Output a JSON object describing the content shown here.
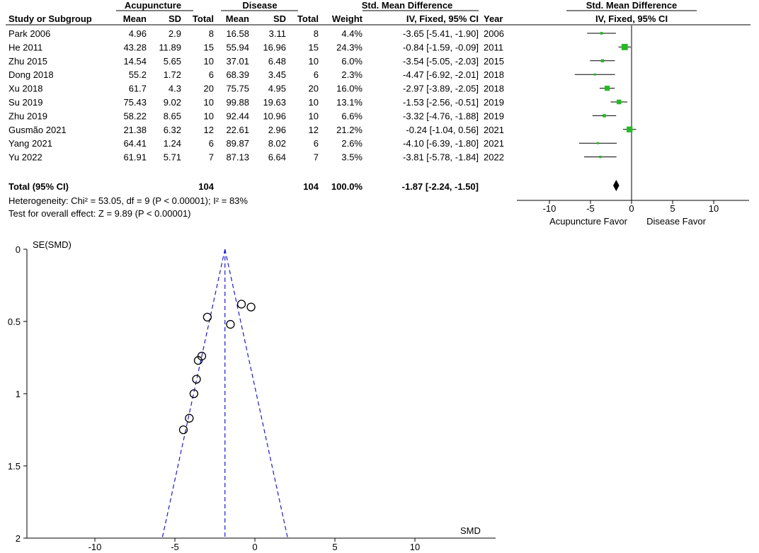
{
  "forest": {
    "group_headers": {
      "left": "Acupuncture",
      "right": "Disease",
      "smd": "Std. Mean Difference",
      "plot": "Std. Mean Difference"
    },
    "columns": {
      "study": "Study or Subgroup",
      "mean1": "Mean",
      "sd1": "SD",
      "total1": "Total",
      "mean2": "Mean",
      "sd2": "SD",
      "total2": "Total",
      "weight": "Weight",
      "ci": "IV, Fixed, 95% CI",
      "year": "Year",
      "plot_ci": "IV, Fixed, 95% CI"
    },
    "rows": [
      {
        "study": "Park 2006",
        "mean1": "4.96",
        "sd1": "2.9",
        "total1": "8",
        "mean2": "16.58",
        "sd2": "3.11",
        "total2": "8",
        "weight": "4.4%",
        "ci": "-3.65 [-5.41, -1.90]",
        "year": "2006"
      },
      {
        "study": "He 2011",
        "mean1": "43.28",
        "sd1": "11.89",
        "total1": "15",
        "mean2": "55.94",
        "sd2": "16.96",
        "total2": "15",
        "weight": "24.3%",
        "ci": "-0.84 [-1.59, -0.09]",
        "year": "2011"
      },
      {
        "study": "Zhu 2015",
        "mean1": "14.54",
        "sd1": "5.65",
        "total1": "10",
        "mean2": "37.01",
        "sd2": "6.48",
        "total2": "10",
        "weight": "6.0%",
        "ci": "-3.54 [-5.05, -2.03]",
        "year": "2015"
      },
      {
        "study": "Dong 2018",
        "mean1": "55.2",
        "sd1": "1.72",
        "total1": "6",
        "mean2": "68.39",
        "sd2": "3.45",
        "total2": "6",
        "weight": "2.3%",
        "ci": "-4.47 [-6.92, -2.01]",
        "year": "2018"
      },
      {
        "study": "Xu 2018",
        "mean1": "61.7",
        "sd1": "4.3",
        "total1": "20",
        "mean2": "75.75",
        "sd2": "4.95",
        "total2": "20",
        "weight": "16.0%",
        "ci": "-2.97 [-3.89, -2.05]",
        "year": "2018"
      },
      {
        "study": "Su 2019",
        "mean1": "75.43",
        "sd1": "9.02",
        "total1": "10",
        "mean2": "99.88",
        "sd2": "19.63",
        "total2": "10",
        "weight": "13.1%",
        "ci": "-1.53 [-2.56, -0.51]",
        "year": "2019"
      },
      {
        "study": "Zhu 2019",
        "mean1": "58.22",
        "sd1": "8.65",
        "total1": "10",
        "mean2": "92.44",
        "sd2": "10.96",
        "total2": "10",
        "weight": "6.6%",
        "ci": "-3.32 [-4.76, -1.88]",
        "year": "2019"
      },
      {
        "study": "Gusmão 2021",
        "mean1": "21.38",
        "sd1": "6.32",
        "total1": "12",
        "mean2": "22.61",
        "sd2": "2.96",
        "total2": "12",
        "weight": "21.2%",
        "ci": "-0.24 [-1.04, 0.56]",
        "year": "2021"
      },
      {
        "study": "Yang 2021",
        "mean1": "64.41",
        "sd1": "1.24",
        "total1": "6",
        "mean2": "89.87",
        "sd2": "8.02",
        "total2": "6",
        "weight": "2.6%",
        "ci": "-4.10 [-6.39, -1.80]",
        "year": "2021"
      },
      {
        "study": "Yu 2022",
        "mean1": "61.91",
        "sd1": "5.71",
        "total1": "7",
        "mean2": "87.13",
        "sd2": "6.64",
        "total2": "7",
        "weight": "3.5%",
        "ci": "-3.81 [-5.78, -1.84]",
        "year": "2022"
      }
    ],
    "total_row": {
      "label": "Total (95% CI)",
      "total1": "104",
      "total2": "104",
      "weight": "100.0%",
      "ci": "-1.87 [-2.24, -1.50]"
    },
    "heterogeneity": "Heterogeneity: Chi² = 53.05, df = 9 (P < 0.00001); I² = 83%",
    "overall_effect": "Test for overall effect: Z = 9.89 (P < 0.00001)",
    "axis_ticks": [
      "-10",
      "-5",
      "0",
      "5",
      "10"
    ],
    "favor_left": "Acupuncture Favor",
    "favor_right": "Disease Favor"
  },
  "chart_data": [
    {
      "type": "scatter",
      "title": "",
      "xlim": [
        -15,
        15
      ],
      "xticks": [
        -10,
        -5,
        0,
        5,
        10
      ],
      "studies": [
        {
          "name": "Park 2006",
          "smd": -3.65,
          "lower": -5.41,
          "upper": -1.9,
          "weight": 4.4
        },
        {
          "name": "He 2011",
          "smd": -0.84,
          "lower": -1.59,
          "upper": -0.09,
          "weight": 24.3
        },
        {
          "name": "Zhu 2015",
          "smd": -3.54,
          "lower": -5.05,
          "upper": -2.03,
          "weight": 6.0
        },
        {
          "name": "Dong 2018",
          "smd": -4.47,
          "lower": -6.92,
          "upper": -2.01,
          "weight": 2.3
        },
        {
          "name": "Xu 2018",
          "smd": -2.97,
          "lower": -3.89,
          "upper": -2.05,
          "weight": 16.0
        },
        {
          "name": "Su 2019",
          "smd": -1.53,
          "lower": -2.56,
          "upper": -0.51,
          "weight": 13.1
        },
        {
          "name": "Zhu 2019",
          "smd": -3.32,
          "lower": -4.76,
          "upper": -1.88,
          "weight": 6.6
        },
        {
          "name": "Gusmão 2021",
          "smd": -0.24,
          "lower": -1.04,
          "upper": 0.56,
          "weight": 21.2
        },
        {
          "name": "Yang 2021",
          "smd": -4.1,
          "lower": -6.39,
          "upper": -1.8,
          "weight": 2.6
        },
        {
          "name": "Yu 2022",
          "smd": -3.81,
          "lower": -5.78,
          "upper": -1.84,
          "weight": 3.5
        }
      ],
      "pooled": {
        "smd": -1.87,
        "lower": -2.24,
        "upper": -1.5
      },
      "colors": {
        "square": "#22bb22",
        "line": "#000000",
        "diamond": "#000000"
      }
    },
    {
      "type": "scatter",
      "title": "",
      "xlabel": "SMD",
      "ylabel": "SE(SMD)",
      "xlim": [
        -15,
        15
      ],
      "ylim": [
        2,
        0
      ],
      "xticks": [
        -10,
        -5,
        0,
        5,
        10
      ],
      "xtick_labels": [
        "-10",
        "-5",
        "0",
        "5",
        "10"
      ],
      "yticks": [
        0,
        0.5,
        1,
        1.5,
        2
      ],
      "ytick_labels": [
        "0",
        "0.5",
        "1",
        "1.5",
        "2"
      ],
      "pooled_smd": -1.87,
      "points": [
        {
          "x": -3.65,
          "y": 0.9
        },
        {
          "x": -0.84,
          "y": 0.38
        },
        {
          "x": -3.54,
          "y": 0.77
        },
        {
          "x": -4.47,
          "y": 1.25
        },
        {
          "x": -2.97,
          "y": 0.47
        },
        {
          "x": -1.53,
          "y": 0.52
        },
        {
          "x": -3.32,
          "y": 0.74
        },
        {
          "x": -0.24,
          "y": 0.4
        },
        {
          "x": -4.1,
          "y": 1.17
        },
        {
          "x": -3.81,
          "y": 1.0
        }
      ],
      "colors": {
        "funnel": "#1a1acc",
        "point": "#000000"
      }
    }
  ]
}
